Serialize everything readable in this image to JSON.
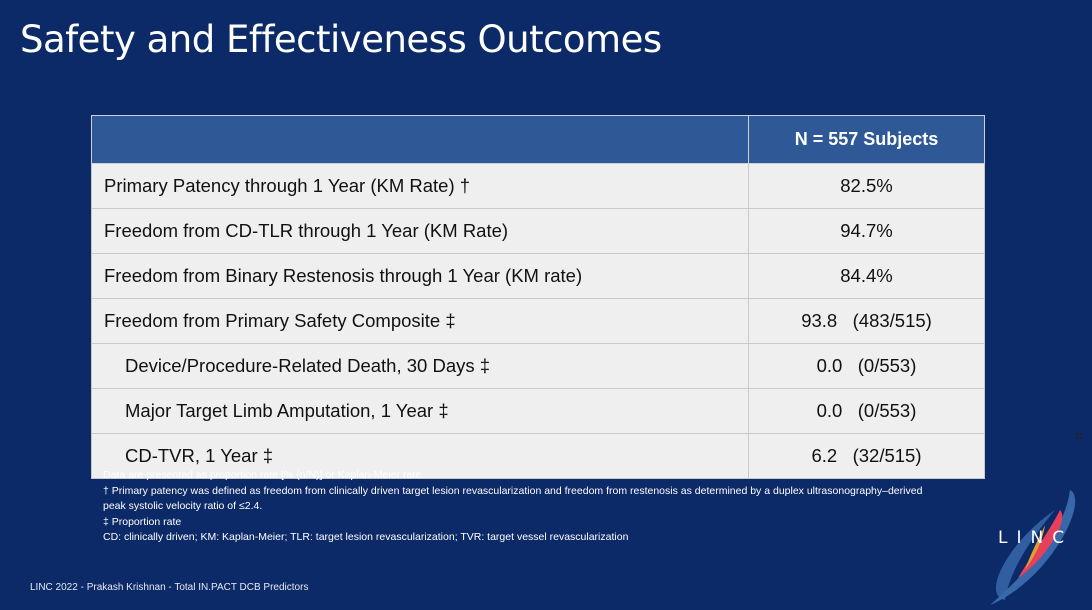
{
  "title": "Safety and Effectiveness Outcomes",
  "table": {
    "header": [
      "",
      "N = 557 Subjects"
    ],
    "rows": [
      {
        "label": "Primary Patency through 1 Year (KM Rate) †",
        "value": "82.5%",
        "indent": false
      },
      {
        "label": "Freedom from CD-TLR through 1 Year (KM Rate)",
        "value": "94.7%",
        "indent": false
      },
      {
        "label": "Freedom from Binary Restenosis through 1 Year (KM rate)",
        "value": "84.4%",
        "indent": false
      },
      {
        "label": "Freedom from Primary Safety Composite ‡",
        "value": "93.8   (483/515)",
        "indent": false
      },
      {
        "label": "Device/Procedure-Related Death, 30 Days ‡",
        "value": "0.0   (0/553)",
        "indent": true
      },
      {
        "label": "Major Target Limb Amputation, 1 Year ‡",
        "value": "0.0   (0/553)",
        "indent": true
      },
      {
        "label": "CD-TVR, 1 Year ‡",
        "value": "6.2   (32/515)",
        "indent": true
      }
    ]
  },
  "notes": [
    "Data are presented as proportion rate [% (n/N)] or Kaplan-Meier rate.",
    "† Primary patency was defined as freedom from clinically driven target lesion revascularization and freedom from restenosis as determined by a duplex ultrasonography–derived peak systolic velocity ratio of ≤2.4.",
    "‡ Proportion rate",
    "CD: clinically driven; KM: Kaplan-Meier; TLR: target lesion revascularization; TVR: target vessel revascularization"
  ],
  "footer": "LINC 2022 - Prakash Krishnan - Total IN.PACT DCB Predictors",
  "page_number": "11",
  "logo": {
    "text": "LINC"
  },
  "colors": {
    "background": "#0c2a68",
    "header": "#2e5996",
    "row": "#efefef"
  }
}
